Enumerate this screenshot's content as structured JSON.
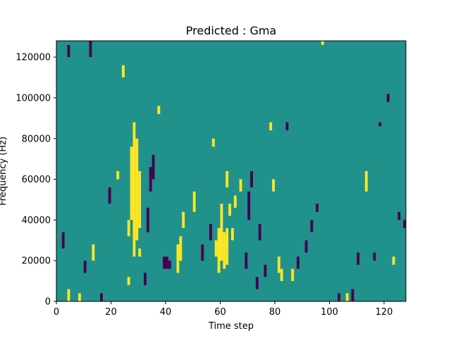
{
  "chart_data": {
    "type": "heatmap",
    "title": "Predicted : Gma",
    "xlabel": "Time step",
    "ylabel": "Frequency (Hz)",
    "xlim": [
      0,
      128
    ],
    "ylim": [
      0,
      128000
    ],
    "xticks": [
      0,
      20,
      40,
      60,
      80,
      100,
      120
    ],
    "yticks": [
      0,
      20000,
      40000,
      60000,
      80000,
      100000,
      120000
    ],
    "grid": false,
    "colormap": "viridis",
    "colors": {
      "background": "#21918c",
      "high": "#fde725",
      "low": "#440154"
    },
    "bin_width_hz": 2000,
    "time_steps": 128,
    "frequency_bins": 64,
    "default_level": "mid",
    "cells": [
      {
        "time_step": 4,
        "freq_start": 0,
        "freq_end": 6000,
        "level": "high"
      },
      {
        "time_step": 2,
        "freq_start": 26000,
        "freq_end": 34000,
        "level": "low"
      },
      {
        "time_step": 4,
        "freq_start": 120000,
        "freq_end": 126000,
        "level": "low"
      },
      {
        "time_step": 8,
        "freq_start": 0,
        "freq_end": 4000,
        "level": "high"
      },
      {
        "time_step": 10,
        "freq_start": 14000,
        "freq_end": 20000,
        "level": "low"
      },
      {
        "time_step": 12,
        "freq_start": 120000,
        "freq_end": 128000,
        "level": "low"
      },
      {
        "time_step": 13,
        "freq_start": 20000,
        "freq_end": 28000,
        "level": "high"
      },
      {
        "time_step": 16,
        "freq_start": 0,
        "freq_end": 4000,
        "level": "low"
      },
      {
        "time_step": 19,
        "freq_start": 48000,
        "freq_end": 56000,
        "level": "low"
      },
      {
        "time_step": 22,
        "freq_start": 60000,
        "freq_end": 64000,
        "level": "high"
      },
      {
        "time_step": 24,
        "freq_start": 110000,
        "freq_end": 116000,
        "level": "high"
      },
      {
        "time_step": 26,
        "freq_start": 8000,
        "freq_end": 12000,
        "level": "high"
      },
      {
        "time_step": 26,
        "freq_start": 32000,
        "freq_end": 40000,
        "level": "high"
      },
      {
        "time_step": 27,
        "freq_start": 40000,
        "freq_end": 76000,
        "level": "high"
      },
      {
        "time_step": 28,
        "freq_start": 22000,
        "freq_end": 88000,
        "level": "high"
      },
      {
        "time_step": 29,
        "freq_start": 30000,
        "freq_end": 80000,
        "level": "high"
      },
      {
        "time_step": 30,
        "freq_start": 36000,
        "freq_end": 64000,
        "level": "high"
      },
      {
        "time_step": 30,
        "freq_start": 22000,
        "freq_end": 26000,
        "level": "high"
      },
      {
        "time_step": 32,
        "freq_start": 8000,
        "freq_end": 14000,
        "level": "low"
      },
      {
        "time_step": 33,
        "freq_start": 34000,
        "freq_end": 46000,
        "level": "low"
      },
      {
        "time_step": 34,
        "freq_start": 54000,
        "freq_end": 66000,
        "level": "low"
      },
      {
        "time_step": 35,
        "freq_start": 60000,
        "freq_end": 72000,
        "level": "low"
      },
      {
        "time_step": 37,
        "freq_start": 92000,
        "freq_end": 96000,
        "level": "high"
      },
      {
        "time_step": 39,
        "freq_start": 16000,
        "freq_end": 22000,
        "level": "low"
      },
      {
        "time_step": 40,
        "freq_start": 16000,
        "freq_end": 22000,
        "level": "low"
      },
      {
        "time_step": 41,
        "freq_start": 16000,
        "freq_end": 20000,
        "level": "low"
      },
      {
        "time_step": 44,
        "freq_start": 14000,
        "freq_end": 28000,
        "level": "high"
      },
      {
        "time_step": 45,
        "freq_start": 20000,
        "freq_end": 32000,
        "level": "high"
      },
      {
        "time_step": 46,
        "freq_start": 36000,
        "freq_end": 44000,
        "level": "high"
      },
      {
        "time_step": 50,
        "freq_start": 44000,
        "freq_end": 54000,
        "level": "high"
      },
      {
        "time_step": 53,
        "freq_start": 20000,
        "freq_end": 28000,
        "level": "low"
      },
      {
        "time_step": 56,
        "freq_start": 30000,
        "freq_end": 38000,
        "level": "low"
      },
      {
        "time_step": 57,
        "freq_start": 76000,
        "freq_end": 80000,
        "level": "high"
      },
      {
        "time_step": 58,
        "freq_start": 22000,
        "freq_end": 30000,
        "level": "high"
      },
      {
        "time_step": 59,
        "freq_start": 14000,
        "freq_end": 36000,
        "level": "high"
      },
      {
        "time_step": 60,
        "freq_start": 20000,
        "freq_end": 48000,
        "level": "high"
      },
      {
        "time_step": 61,
        "freq_start": 16000,
        "freq_end": 34000,
        "level": "high"
      },
      {
        "time_step": 62,
        "freq_start": 18000,
        "freq_end": 36000,
        "level": "high"
      },
      {
        "time_step": 62,
        "freq_start": 56000,
        "freq_end": 64000,
        "level": "high"
      },
      {
        "time_step": 63,
        "freq_start": 42000,
        "freq_end": 48000,
        "level": "high"
      },
      {
        "time_step": 64,
        "freq_start": 30000,
        "freq_end": 36000,
        "level": "high"
      },
      {
        "time_step": 65,
        "freq_start": 46000,
        "freq_end": 52000,
        "level": "high"
      },
      {
        "time_step": 67,
        "freq_start": 54000,
        "freq_end": 60000,
        "level": "high"
      },
      {
        "time_step": 69,
        "freq_start": 16000,
        "freq_end": 24000,
        "level": "low"
      },
      {
        "time_step": 70,
        "freq_start": 40000,
        "freq_end": 54000,
        "level": "low"
      },
      {
        "time_step": 71,
        "freq_start": 56000,
        "freq_end": 64000,
        "level": "low"
      },
      {
        "time_step": 73,
        "freq_start": 6000,
        "freq_end": 12000,
        "level": "low"
      },
      {
        "time_step": 74,
        "freq_start": 30000,
        "freq_end": 38000,
        "level": "low"
      },
      {
        "time_step": 76,
        "freq_start": 12000,
        "freq_end": 18000,
        "level": "low"
      },
      {
        "time_step": 78,
        "freq_start": 84000,
        "freq_end": 88000,
        "level": "high"
      },
      {
        "time_step": 79,
        "freq_start": 54000,
        "freq_end": 60000,
        "level": "high"
      },
      {
        "time_step": 81,
        "freq_start": 14000,
        "freq_end": 22000,
        "level": "high"
      },
      {
        "time_step": 82,
        "freq_start": 10000,
        "freq_end": 16000,
        "level": "high"
      },
      {
        "time_step": 84,
        "freq_start": 84000,
        "freq_end": 88000,
        "level": "low"
      },
      {
        "time_step": 86,
        "freq_start": 10000,
        "freq_end": 16000,
        "level": "high"
      },
      {
        "time_step": 88,
        "freq_start": 16000,
        "freq_end": 22000,
        "level": "low"
      },
      {
        "time_step": 91,
        "freq_start": 24000,
        "freq_end": 30000,
        "level": "low"
      },
      {
        "time_step": 93,
        "freq_start": 34000,
        "freq_end": 40000,
        "level": "low"
      },
      {
        "time_step": 95,
        "freq_start": 44000,
        "freq_end": 48000,
        "level": "low"
      },
      {
        "time_step": 97,
        "freq_start": 126000,
        "freq_end": 128000,
        "level": "high"
      },
      {
        "time_step": 103,
        "freq_start": 0,
        "freq_end": 4000,
        "level": "low"
      },
      {
        "time_step": 106,
        "freq_start": 0,
        "freq_end": 4000,
        "level": "high"
      },
      {
        "time_step": 108,
        "freq_start": 0,
        "freq_end": 6000,
        "level": "low"
      },
      {
        "time_step": 110,
        "freq_start": 18000,
        "freq_end": 24000,
        "level": "low"
      },
      {
        "time_step": 113,
        "freq_start": 54000,
        "freq_end": 64000,
        "level": "high"
      },
      {
        "time_step": 116,
        "freq_start": 20000,
        "freq_end": 24000,
        "level": "low"
      },
      {
        "time_step": 118,
        "freq_start": 86000,
        "freq_end": 88000,
        "level": "low"
      },
      {
        "time_step": 121,
        "freq_start": 98000,
        "freq_end": 102000,
        "level": "low"
      },
      {
        "time_step": 123,
        "freq_start": 18000,
        "freq_end": 22000,
        "level": "high"
      },
      {
        "time_step": 125,
        "freq_start": 40000,
        "freq_end": 44000,
        "level": "low"
      },
      {
        "time_step": 127,
        "freq_start": 36000,
        "freq_end": 40000,
        "level": "low"
      }
    ]
  }
}
